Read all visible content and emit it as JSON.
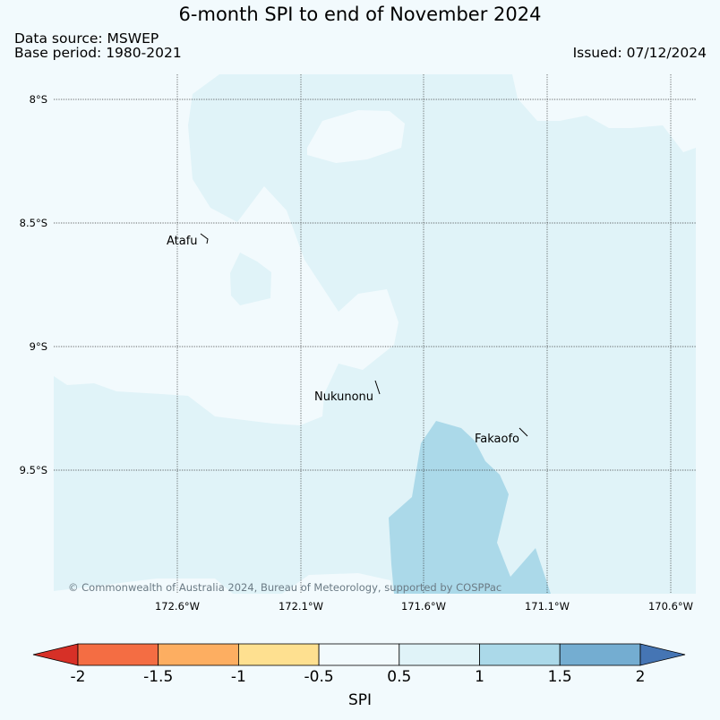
{
  "title": "6-month SPI to end of November 2024",
  "data_source": "Data source: MSWEP",
  "base_period": "Base period: 1980-2021",
  "issued": "Issued: 07/12/2024",
  "map": {
    "lat_ticks": [
      "8°S",
      "8.5°S",
      "9°S",
      "9.5°S"
    ],
    "lon_ticks": [
      "172.6°W",
      "172.1°W",
      "171.6°W",
      "171.1°W",
      "170.6°W"
    ],
    "places": [
      "Atafu",
      "Nukunonu",
      "Fakaofo"
    ],
    "copyright": "© Commonwealth of Australia 2024, Bureau of Meteorology, supported by COSPPac",
    "region_colors": {
      "near_normal": "#f2fafd",
      "moderately_wet": "#e0f3f8",
      "very_wet": "#abd9e9"
    }
  },
  "colorbar": {
    "label": "SPI",
    "ticks": [
      "-2",
      "-1.5",
      "-1",
      "-0.5",
      "0.5",
      "1",
      "1.5",
      "2"
    ],
    "colors": [
      "#d73027",
      "#f46d43",
      "#fdae61",
      "#fee090",
      "#f2fafd",
      "#e0f3f8",
      "#abd9e9",
      "#74add1",
      "#4575b4"
    ]
  }
}
